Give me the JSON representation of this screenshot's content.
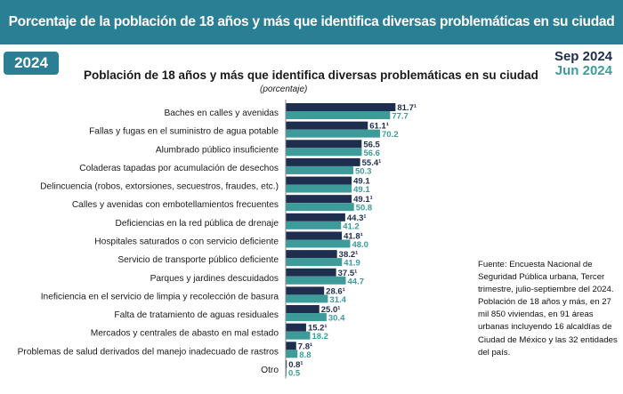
{
  "banner": {
    "title": "Porcentaje de la población de 18 años y más que identifica diversas problemáticas en su ciudad 2024"
  },
  "badge": {
    "year": "2024"
  },
  "legend": {
    "sep_label": "Sep 2024",
    "jun_label": "Jun 2024"
  },
  "note": {
    "source": "Fuente: Encuesta Nacional de Seguridad Pública urbana, Tercer trimestre, julio-septiembre del 2024.",
    "population": "Población de 18 años y más, en 27 mil 850 viviendas, en 91 áreas urbanas incluyendo 16 alcaldías de Ciudad de México y las 32  entidades del país."
  },
  "colors": {
    "banner": "#2a7f95",
    "sep": "#1f2d4f",
    "jun": "#3d9b99"
  },
  "chart_data": {
    "type": "bar",
    "orientation": "horizontal",
    "title": "Población de 18 años y más que identifica diversas problemáticas en su ciudad",
    "subtitle": "(porcentaje)",
    "xlim": [
      0,
      100
    ],
    "categories": [
      "Baches en calles y avenidas",
      "Fallas y fugas en el suministro de agua potable",
      "Alumbrado público insuficiente",
      "Coladeras tapadas por acumulación de desechos",
      "Delincuencia (robos, extorsiones, secuestros, fraudes, etc.)",
      "Calles y avenidas con embotellamientos frecuentes",
      "Deficiencias en la red pública de drenaje",
      "Hospitales saturados o con servicio deficiente",
      "Servicio de transporte público deficiente",
      "Parques y jardines descuidados",
      "Ineficiencia en el servicio de limpia y recolección de basura",
      "Falta de tratamiento de aguas residuales",
      "Mercados y centrales de abasto en mal estado",
      "Problemas de salud derivados del manejo inadecuado de rastros",
      "Otro"
    ],
    "series": [
      {
        "name": "Sep 2024",
        "values": [
          81.7,
          61.1,
          56.5,
          55.4,
          49.1,
          49.1,
          44.3,
          41.8,
          38.2,
          37.5,
          28.6,
          25.0,
          15.2,
          7.8,
          0.8
        ],
        "labels": [
          "81.7¹",
          "61.1¹",
          "56.5",
          "55.4¹",
          "49.1",
          "49.1¹",
          "44.3¹",
          "41.8¹",
          "38.2¹",
          "37.5¹",
          "28.6¹",
          "25.0¹",
          "15.2¹",
          "7.8¹",
          "0.8¹"
        ]
      },
      {
        "name": "Jun 2024",
        "values": [
          77.7,
          70.2,
          56.6,
          50.3,
          49.1,
          50.8,
          41.2,
          48.0,
          41.9,
          44.7,
          31.4,
          30.4,
          18.2,
          8.8,
          0.5
        ],
        "labels": [
          "77.7",
          "70.2",
          "56.6",
          "50.3",
          "49.1",
          "50.8",
          "41.2",
          "48.0",
          "41.9",
          "44.7",
          "31.4",
          "30.4",
          "18.2",
          "8.8",
          "0.5"
        ]
      }
    ]
  }
}
